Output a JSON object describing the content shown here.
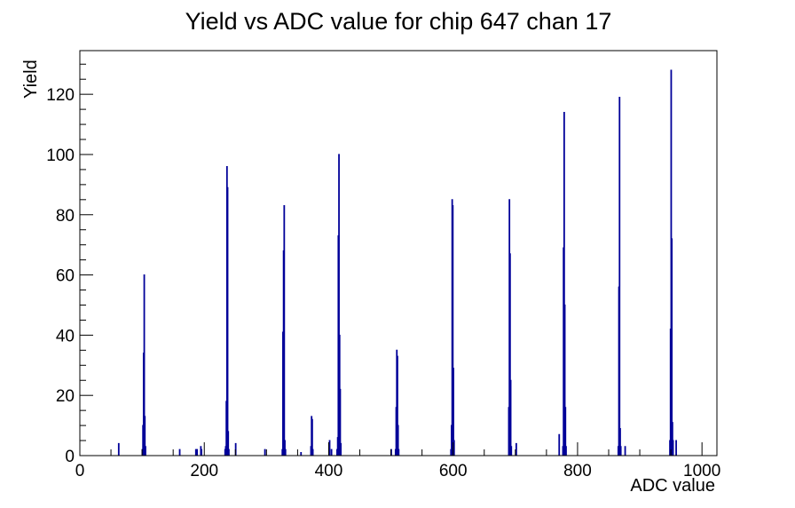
{
  "window": {
    "background_color": "#ffffff",
    "foreground_color": "#000000"
  },
  "chart_data": {
    "type": "bar",
    "subtype": "histogram",
    "title": "Yield vs ADC value for chip 647 chan 17",
    "xlabel": "ADC value",
    "ylabel": "Yield",
    "xlim": [
      0,
      1024
    ],
    "ylim": [
      0,
      134.5
    ],
    "x_major_ticks": [
      0,
      200,
      400,
      600,
      800,
      1000
    ],
    "x_minor_step": 50,
    "y_major_ticks": [
      0,
      20,
      40,
      60,
      80,
      100,
      120
    ],
    "y_minor_step": 5,
    "grid": false,
    "legend": false,
    "line_color": "#000099",
    "axis_color": "#000000",
    "bin_width": 1,
    "bins": [
      [
        62,
        4
      ],
      [
        100,
        2
      ],
      [
        101,
        10
      ],
      [
        102,
        34
      ],
      [
        103,
        60
      ],
      [
        104,
        13
      ],
      [
        105,
        3
      ],
      [
        160,
        2
      ],
      [
        186,
        2
      ],
      [
        188,
        2
      ],
      [
        194,
        3
      ],
      [
        195,
        2
      ],
      [
        233,
        2
      ],
      [
        234,
        3
      ],
      [
        235,
        18
      ],
      [
        236,
        96
      ],
      [
        237,
        89
      ],
      [
        238,
        8
      ],
      [
        239,
        2
      ],
      [
        250,
        4
      ],
      [
        297,
        2
      ],
      [
        325,
        2
      ],
      [
        326,
        41
      ],
      [
        327,
        68
      ],
      [
        328,
        83
      ],
      [
        329,
        5
      ],
      [
        330,
        2
      ],
      [
        355,
        1
      ],
      [
        371,
        3
      ],
      [
        372,
        13
      ],
      [
        373,
        12
      ],
      [
        374,
        2
      ],
      [
        401,
        5
      ],
      [
        404,
        2
      ],
      [
        413,
        2
      ],
      [
        414,
        6
      ],
      [
        415,
        73
      ],
      [
        416,
        100
      ],
      [
        417,
        40
      ],
      [
        418,
        22
      ],
      [
        419,
        4
      ],
      [
        500,
        2
      ],
      [
        507,
        2
      ],
      [
        508,
        16
      ],
      [
        509,
        35
      ],
      [
        510,
        33
      ],
      [
        511,
        10
      ],
      [
        512,
        2
      ],
      [
        596,
        2
      ],
      [
        597,
        10
      ],
      [
        598,
        85
      ],
      [
        599,
        83
      ],
      [
        600,
        29
      ],
      [
        601,
        5
      ],
      [
        689,
        16
      ],
      [
        690,
        85
      ],
      [
        691,
        67
      ],
      [
        692,
        25
      ],
      [
        693,
        3
      ],
      [
        701,
        4
      ],
      [
        770,
        7
      ],
      [
        776,
        3
      ],
      [
        777,
        69
      ],
      [
        778,
        114
      ],
      [
        779,
        50
      ],
      [
        780,
        16
      ],
      [
        781,
        3
      ],
      [
        865,
        3
      ],
      [
        866,
        56
      ],
      [
        867,
        119
      ],
      [
        868,
        9
      ],
      [
        869,
        3
      ],
      [
        876,
        3
      ],
      [
        948,
        5
      ],
      [
        949,
        42
      ],
      [
        950,
        128
      ],
      [
        951,
        72
      ],
      [
        952,
        11
      ],
      [
        953,
        5
      ],
      [
        958,
        5
      ]
    ]
  }
}
